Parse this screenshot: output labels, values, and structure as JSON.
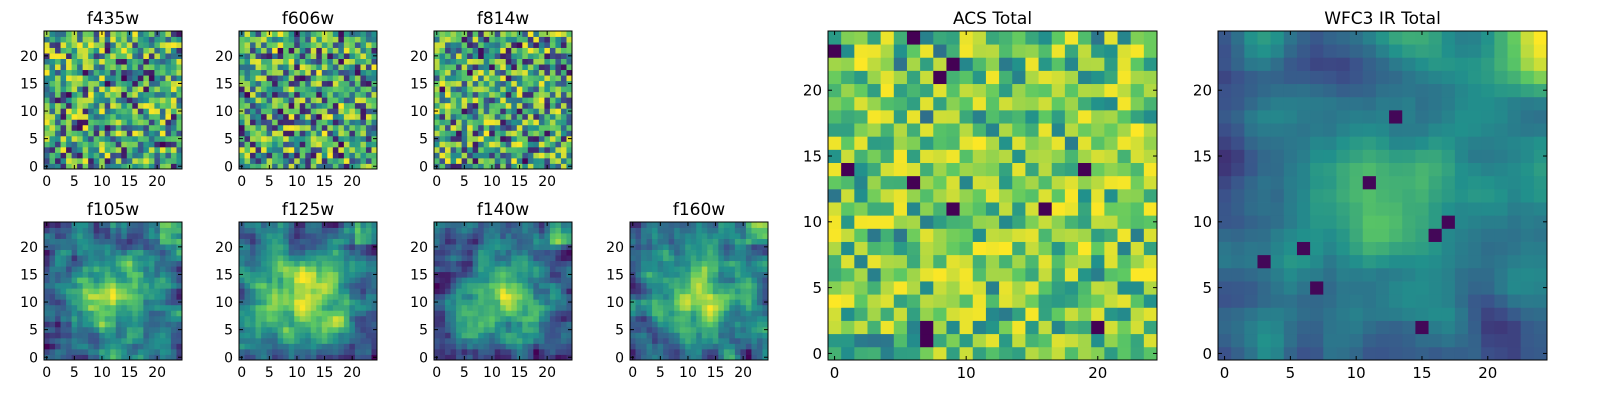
{
  "figure": {
    "colormap": "viridis",
    "colormap_stops": [
      "#440154",
      "#3b528b",
      "#21918c",
      "#5ec962",
      "#fde725"
    ]
  },
  "chart_data": [
    {
      "type": "heatmap",
      "title": "f435w",
      "grid_size": 25,
      "xlim": [
        -0.5,
        24.5
      ],
      "ylim": [
        -0.5,
        24.5
      ],
      "xticks": [
        0,
        5,
        10,
        15,
        20
      ],
      "yticks": [
        0,
        5,
        10,
        15,
        20
      ],
      "pattern": "noise",
      "seed": 11
    },
    {
      "type": "heatmap",
      "title": "f606w",
      "grid_size": 25,
      "xlim": [
        -0.5,
        24.5
      ],
      "ylim": [
        -0.5,
        24.5
      ],
      "xticks": [
        0,
        5,
        10,
        15,
        20
      ],
      "yticks": [
        0,
        5,
        10,
        15,
        20
      ],
      "pattern": "noise",
      "seed": 23
    },
    {
      "type": "heatmap",
      "title": "f814w",
      "grid_size": 25,
      "xlim": [
        -0.5,
        24.5
      ],
      "ylim": [
        -0.5,
        24.5
      ],
      "xticks": [
        0,
        5,
        10,
        15,
        20
      ],
      "yticks": [
        0,
        5,
        10,
        15,
        20
      ],
      "pattern": "noise",
      "seed": 37
    },
    {
      "type": "heatmap",
      "title": "f105w",
      "grid_size": 25,
      "xlim": [
        -0.5,
        24.5
      ],
      "ylim": [
        -0.5,
        24.5
      ],
      "xticks": [
        0,
        5,
        10,
        15,
        20
      ],
      "yticks": [
        0,
        5,
        10,
        15,
        20
      ],
      "pattern": "smooth",
      "seed": 41
    },
    {
      "type": "heatmap",
      "title": "f125w",
      "grid_size": 25,
      "xlim": [
        -0.5,
        24.5
      ],
      "ylim": [
        -0.5,
        24.5
      ],
      "xticks": [
        0,
        5,
        10,
        15,
        20
      ],
      "yticks": [
        0,
        5,
        10,
        15,
        20
      ],
      "pattern": "smooth",
      "seed": 53
    },
    {
      "type": "heatmap",
      "title": "f140w",
      "grid_size": 25,
      "xlim": [
        -0.5,
        24.5
      ],
      "ylim": [
        -0.5,
        24.5
      ],
      "xticks": [
        0,
        5,
        10,
        15,
        20
      ],
      "yticks": [
        0,
        5,
        10,
        15,
        20
      ],
      "pattern": "smooth",
      "seed": 67
    },
    {
      "type": "heatmap",
      "title": "f160w",
      "grid_size": 25,
      "xlim": [
        -0.5,
        24.5
      ],
      "ylim": [
        -0.5,
        24.5
      ],
      "xticks": [
        0,
        5,
        10,
        15,
        20
      ],
      "yticks": [
        0,
        5,
        10,
        15,
        20
      ],
      "pattern": "smooth",
      "seed": 79
    },
    {
      "type": "heatmap",
      "title": "ACS Total",
      "grid_size": 25,
      "xlim": [
        -0.5,
        24.5
      ],
      "ylim": [
        -0.5,
        24.5
      ],
      "xticks": [
        0,
        10,
        20
      ],
      "yticks": [
        0,
        5,
        10,
        15,
        20
      ],
      "pattern": "noise_bright",
      "seed": 97
    },
    {
      "type": "heatmap",
      "title": "WFC3 IR Total",
      "grid_size": 25,
      "xlim": [
        -0.5,
        24.5
      ],
      "ylim": [
        -0.5,
        24.5
      ],
      "xticks": [
        0,
        5,
        10,
        15,
        20
      ],
      "yticks": [
        0,
        5,
        10,
        15,
        20
      ],
      "pattern": "smooth_total",
      "seed": 113
    }
  ]
}
